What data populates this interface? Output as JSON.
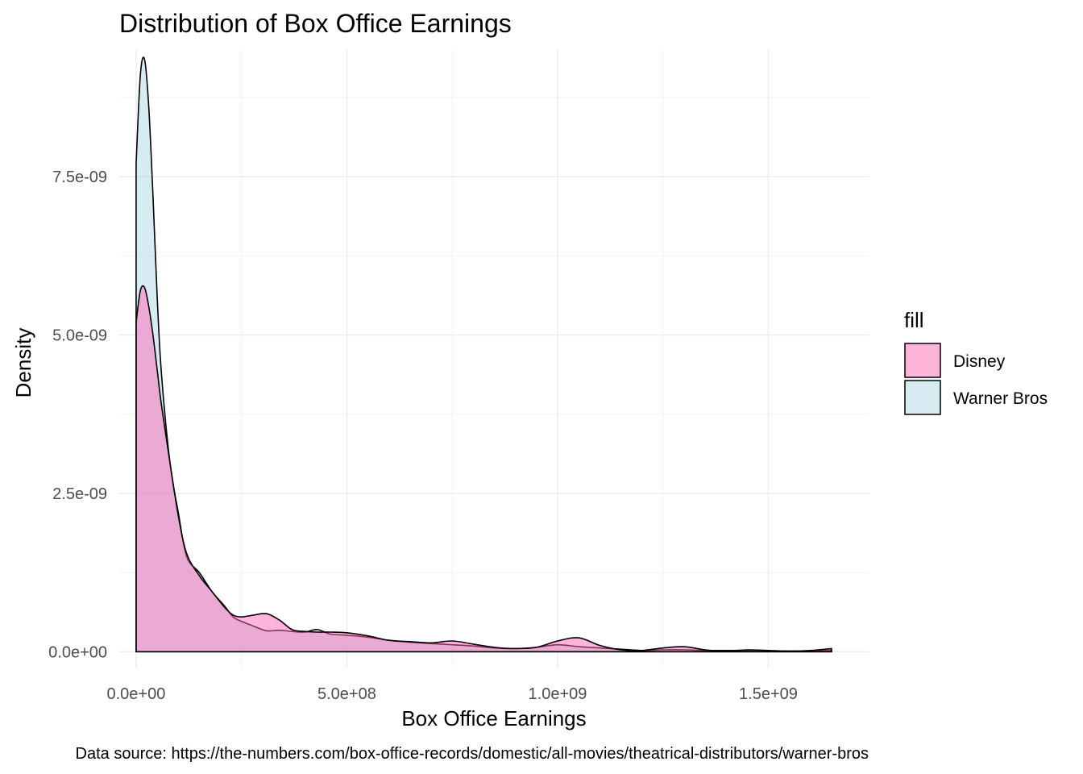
{
  "chart_data": {
    "type": "area",
    "title": "Distribution of Box Office Earnings",
    "xlabel": "Box Office Earnings",
    "ylabel": "Density",
    "caption": "Data source: https://the-numbers.com/box-office-records/domestic/all-movies/theatrical-distributors/warner-bros",
    "xlim": [
      -40000000.0,
      1740000000.0
    ],
    "ylim": [
      -2.5e-10,
      9.5e-09
    ],
    "x_ticks": [
      0,
      500000000,
      1000000000,
      1500000000
    ],
    "x_tick_labels": [
      "0.0e+00",
      "5.0e+08",
      "1.0e+09",
      "1.5e+09"
    ],
    "y_ticks": [
      0,
      2.5e-09,
      5e-09,
      7.5e-09
    ],
    "y_tick_labels": [
      "0.0e+00",
      "2.5e-09",
      "5.0e-09",
      "7.5e-09"
    ],
    "grid": true,
    "legend": {
      "title": "fill",
      "position": "right",
      "entries": [
        {
          "label": "Disney",
          "color": "#ff69b4"
        },
        {
          "label": "Warner Bros",
          "color": "#add8e6"
        }
      ]
    },
    "series": [
      {
        "name": "Warner Bros",
        "color": "#add8e6",
        "x": [
          0,
          10000000,
          20000000,
          30000000,
          40000000,
          50000000,
          60000000,
          80000000,
          100000000,
          120000000,
          150000000,
          180000000,
          210000000,
          230000000,
          250000000,
          280000000,
          310000000,
          340000000,
          370000000,
          400000000,
          430000000,
          460000000,
          500000000,
          550000000,
          600000000,
          650000000,
          700000000,
          750000000,
          800000000,
          850000000,
          900000000,
          950000000,
          1000000000,
          1050000000,
          1100000000,
          1150000000,
          1200000000,
          1250000000,
          1300000000,
          1350000000,
          1400000000,
          1450000000,
          1500000000,
          1550000000,
          1600000000,
          1650000000
        ],
        "y": [
          7.7e-09,
          9.1e-09,
          9.35e-09,
          8.6e-09,
          7.2e-09,
          5.6e-09,
          4.4e-09,
          3e-09,
          2.2e-09,
          1.5e-09,
          1.25e-09,
          9.5e-10,
          7.2e-10,
          5.5e-10,
          4.8e-10,
          4e-10,
          3.3e-10,
          3.4e-10,
          3.2e-10,
          3.1e-10,
          3.5e-10,
          2.8e-10,
          2.6e-10,
          2.3e-10,
          1.8e-10,
          1.5e-10,
          1.3e-10,
          1.1e-10,
          9e-11,
          6e-11,
          5e-11,
          7e-11,
          1.1e-10,
          8e-11,
          6e-11,
          4e-11,
          2e-11,
          3e-11,
          3e-11,
          2e-11,
          2e-11,
          2e-11,
          1e-11,
          1e-11,
          1e-11,
          2e-11
        ]
      },
      {
        "name": "Disney",
        "color": "#ff69b4",
        "x": [
          0,
          10000000,
          20000000,
          30000000,
          40000000,
          50000000,
          60000000,
          80000000,
          100000000,
          120000000,
          150000000,
          180000000,
          210000000,
          230000000,
          250000000,
          280000000,
          310000000,
          340000000,
          370000000,
          400000000,
          430000000,
          460000000,
          500000000,
          550000000,
          600000000,
          650000000,
          700000000,
          750000000,
          800000000,
          850000000,
          900000000,
          950000000,
          1000000000,
          1050000000,
          1100000000,
          1150000000,
          1200000000,
          1250000000,
          1300000000,
          1350000000,
          1400000000,
          1450000000,
          1500000000,
          1550000000,
          1600000000,
          1650000000
        ],
        "y": [
          5.2e-09,
          5.7e-09,
          5.75e-09,
          5.45e-09,
          5e-09,
          4.45e-09,
          3.9e-09,
          3e-09,
          2.15e-09,
          1.55e-09,
          1.2e-09,
          9.5e-10,
          7e-10,
          5.8e-10,
          5.5e-10,
          5.8e-10,
          6e-10,
          5e-10,
          3.5e-10,
          3.2e-10,
          3.1e-10,
          3.1e-10,
          3e-10,
          2.5e-10,
          1.8e-10,
          1.6e-10,
          1.4e-10,
          1.7e-10,
          1.2e-10,
          7e-11,
          5e-11,
          7e-11,
          1.7e-10,
          2.2e-10,
          1e-10,
          3e-11,
          2e-11,
          6e-11,
          8e-11,
          3e-11,
          1e-11,
          3e-11,
          2e-11,
          1e-11,
          2e-11,
          5e-11
        ]
      }
    ]
  }
}
